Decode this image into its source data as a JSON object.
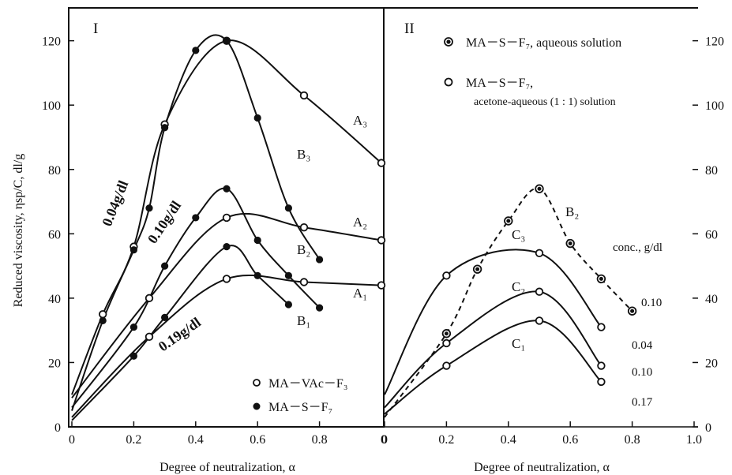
{
  "chart_data": [
    {
      "type": "line",
      "panel_label": "I",
      "xlabel": "Degree of neutralization, α",
      "ylabel": "Reduced viscosity, ηsp/C, dl/g",
      "xlim": [
        0,
        1.0
      ],
      "ylim": [
        0,
        130
      ],
      "x_ticks": [
        "0",
        "0.2",
        "0.4",
        "0.6",
        "0.8"
      ],
      "y_ticks": [
        "0",
        "20",
        "40",
        "60",
        "80",
        "100",
        "120"
      ],
      "legend": [
        {
          "marker": "open",
          "label": "MA－VAc－F₃"
        },
        {
          "marker": "filled",
          "label": "MA－S－F₇"
        }
      ],
      "concentration_labels": [
        "0.04g/dl",
        "0.10g/dl",
        "0.19g/dl"
      ],
      "series": [
        {
          "name": "A₃",
          "marker": "open",
          "points": [
            [
              0,
              10
            ],
            [
              0.1,
              35
            ],
            [
              0.2,
              56
            ],
            [
              0.3,
              94
            ],
            [
              0.5,
              120
            ],
            [
              0.75,
              103
            ],
            [
              1.0,
              82
            ]
          ]
        },
        {
          "name": "B₃",
          "marker": "filled",
          "points": [
            [
              0,
              5
            ],
            [
              0.1,
              33
            ],
            [
              0.2,
              55
            ],
            [
              0.25,
              68
            ],
            [
              0.3,
              93
            ],
            [
              0.4,
              117
            ],
            [
              0.5,
              120
            ],
            [
              0.6,
              96
            ],
            [
              0.7,
              68
            ],
            [
              0.8,
              52
            ]
          ]
        },
        {
          "name": "A₂",
          "marker": "open",
          "points": [
            [
              0,
              9
            ],
            [
              0.25,
              40
            ],
            [
              0.5,
              65
            ],
            [
              0.75,
              62
            ],
            [
              1.0,
              58
            ]
          ]
        },
        {
          "name": "B₂",
          "marker": "filled",
          "points": [
            [
              0,
              6
            ],
            [
              0.2,
              31
            ],
            [
              0.3,
              50
            ],
            [
              0.4,
              65
            ],
            [
              0.5,
              74
            ],
            [
              0.6,
              58
            ],
            [
              0.7,
              47
            ],
            [
              0.8,
              37
            ]
          ]
        },
        {
          "name": "A₁",
          "marker": "open",
          "points": [
            [
              0,
              3
            ],
            [
              0.25,
              28
            ],
            [
              0.5,
              46
            ],
            [
              0.75,
              45
            ],
            [
              1.0,
              44
            ]
          ]
        },
        {
          "name": "B₁",
          "marker": "filled",
          "points": [
            [
              0,
              2
            ],
            [
              0.2,
              22
            ],
            [
              0.3,
              34
            ],
            [
              0.5,
              56
            ],
            [
              0.6,
              47
            ],
            [
              0.7,
              38
            ]
          ]
        }
      ]
    },
    {
      "type": "line",
      "panel_label": "II",
      "xlabel": "Degree of neutralization, α",
      "ylabel": "",
      "xlim": [
        0,
        1.0
      ],
      "ylim": [
        0,
        130
      ],
      "x_ticks": [
        "0",
        "0.2",
        "0.4",
        "0.6",
        "0.8",
        "1.0"
      ],
      "y_ticks": [
        "0",
        "20",
        "40",
        "60",
        "80",
        "100",
        "120"
      ],
      "legend": [
        {
          "marker": "half",
          "label": "MA－S－F₇,  aqueous solution"
        },
        {
          "marker": "open",
          "label": "MA－S－F₇,",
          "label2": "acetone-aqueous (1 : 1) solution"
        }
      ],
      "conc_header": "conc., g/dl",
      "conc_values": [
        "0.10",
        "0.04",
        "0.10",
        "0.17"
      ],
      "series": [
        {
          "name": "B₂",
          "marker": "half",
          "dashed": true,
          "points": [
            [
              0,
              3
            ],
            [
              0.2,
              29
            ],
            [
              0.3,
              49
            ],
            [
              0.4,
              64
            ],
            [
              0.5,
              74
            ],
            [
              0.6,
              57
            ],
            [
              0.7,
              46
            ],
            [
              0.8,
              36
            ]
          ]
        },
        {
          "name": "C₃",
          "marker": "open",
          "points": [
            [
              0,
              10
            ],
            [
              0.2,
              47
            ],
            [
              0.5,
              54
            ],
            [
              0.7,
              31
            ]
          ]
        },
        {
          "name": "C₂",
          "marker": "open",
          "points": [
            [
              0,
              6
            ],
            [
              0.2,
              26
            ],
            [
              0.5,
              42
            ],
            [
              0.7,
              19
            ]
          ]
        },
        {
          "name": "C₁",
          "marker": "open",
          "points": [
            [
              0,
              4
            ],
            [
              0.2,
              19
            ],
            [
              0.5,
              33
            ],
            [
              0.7,
              14
            ]
          ]
        }
      ]
    }
  ]
}
